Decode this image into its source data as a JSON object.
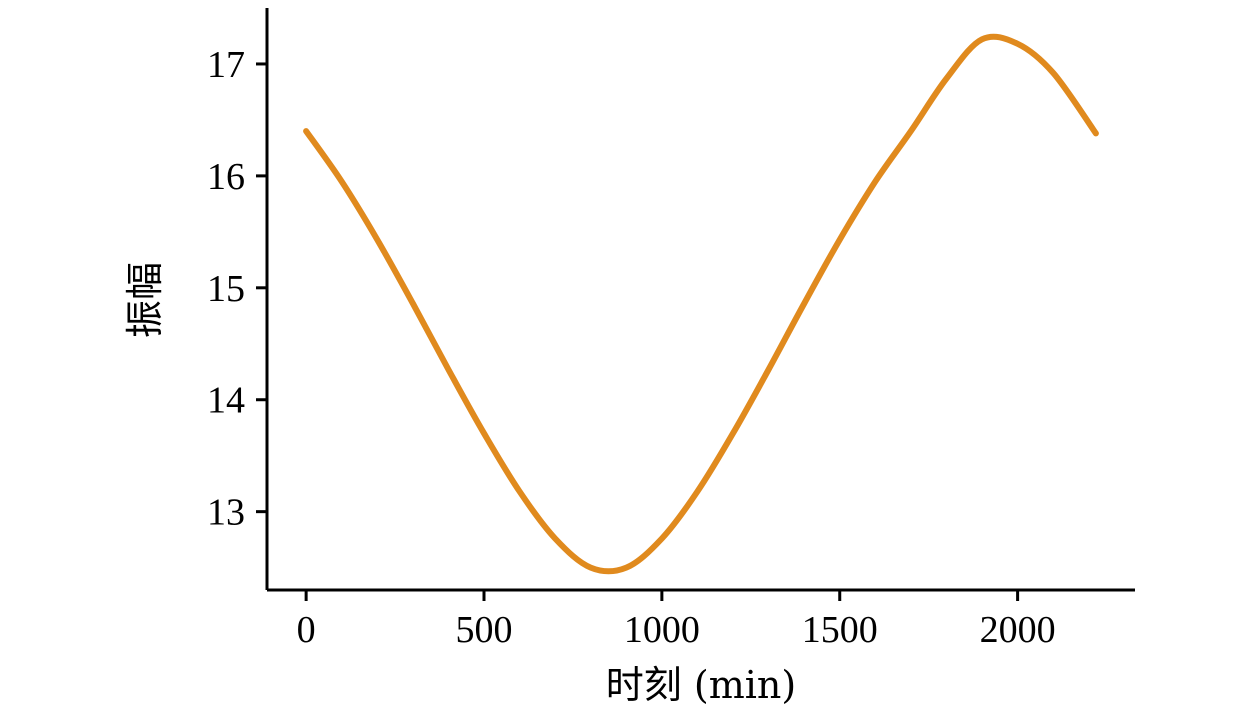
{
  "chart_data": {
    "type": "line",
    "title": "",
    "xlabel": "时刻 (min)",
    "ylabel": "振幅",
    "xlim": [
      -110,
      2330
    ],
    "ylim": [
      12.3,
      17.5
    ],
    "xticks": [
      0,
      500,
      1000,
      1500,
      2000
    ],
    "xtick_labels": [
      "0",
      "500",
      "1000",
      "1500",
      "2000"
    ],
    "yticks": [
      13,
      14,
      15,
      16,
      17
    ],
    "ytick_labels": [
      "13",
      "14",
      "15",
      "16",
      "17"
    ],
    "grid": false,
    "legend": "none",
    "line_color": "#E08A1E",
    "series": [
      {
        "x": [
          0,
          100,
          200,
          300,
          400,
          500,
          600,
          700,
          800,
          900,
          1000,
          1100,
          1200,
          1300,
          1400,
          1500,
          1600,
          1700,
          1800,
          1900,
          2000,
          2100,
          2220
        ],
        "values": [
          16.4,
          15.95,
          15.43,
          14.86,
          14.27,
          13.7,
          13.18,
          12.76,
          12.5,
          12.5,
          12.76,
          13.18,
          13.7,
          14.27,
          14.86,
          15.43,
          15.95,
          16.4,
          16.87,
          17.22,
          17.18,
          16.92,
          16.38
        ]
      }
    ]
  }
}
